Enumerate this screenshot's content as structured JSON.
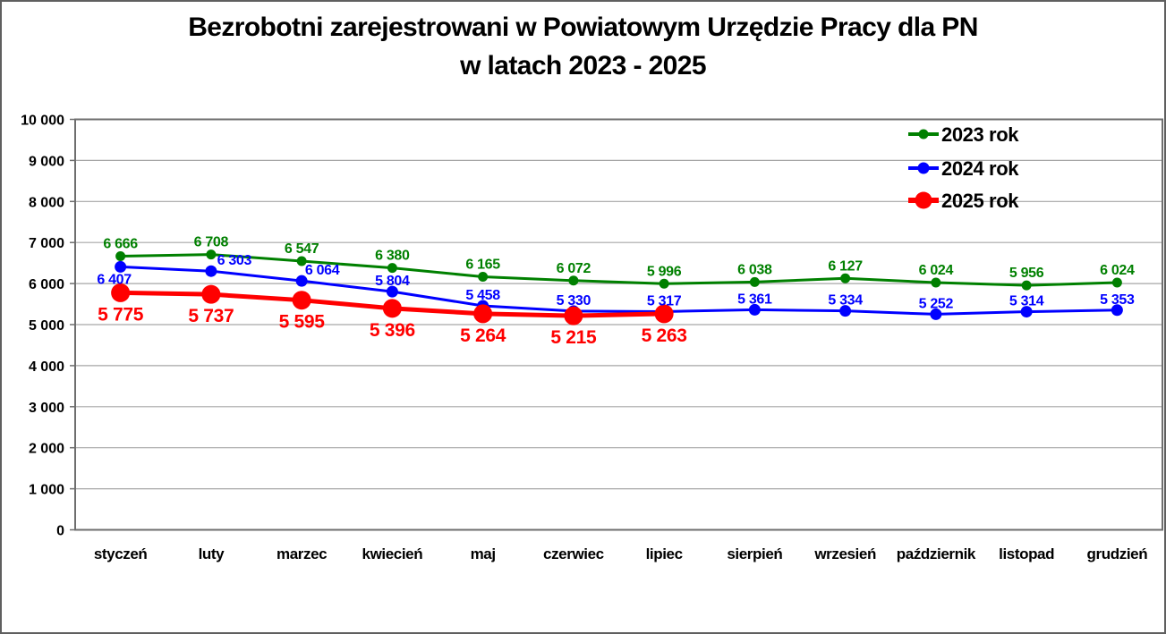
{
  "header": {
    "title_line1": "Bezrobotni zarejestrowani w Powiatowym Urzędzie Pracy dla PN",
    "title_line2": "w latach 2023 - 2025"
  },
  "chart_data": {
    "type": "line",
    "title": "Bezrobotni zarejestrowani w Powiatowym Urzędzie Pracy dla PN w latach 2023 - 2025",
    "categories": [
      "styczeń",
      "luty",
      "marzec",
      "kwiecień",
      "maj",
      "czerwiec",
      "lipiec",
      "sierpień",
      "wrzesień",
      "październik",
      "listopad",
      "grudzień"
    ],
    "series": [
      {
        "name": "2023 rok",
        "color": "#008000",
        "values": [
          6666,
          6708,
          6547,
          6380,
          6165,
          6072,
          5996,
          6038,
          6127,
          6024,
          5956,
          6024
        ]
      },
      {
        "name": "2024 rok",
        "color": "#0000FF",
        "values": [
          6407,
          6303,
          6064,
          5804,
          5458,
          5330,
          5317,
          5361,
          5334,
          5252,
          5314,
          5353
        ]
      },
      {
        "name": "2025 rok",
        "color": "#FF0000",
        "values": [
          5775,
          5737,
          5595,
          5396,
          5264,
          5215,
          5263,
          null,
          null,
          null,
          null,
          null
        ]
      }
    ],
    "ylim": [
      0,
      10000
    ],
    "ytick_step": 1000,
    "y_tick_labels": [
      "0",
      "1 000",
      "2 000",
      "3 000",
      "4 000",
      "5 000",
      "6 000",
      "7 000",
      "8 000",
      "9 000",
      "10 000"
    ],
    "grid": "horizontal",
    "data_labels": true,
    "number_format": "space-thousands",
    "legend_position": "top-right-inside",
    "legend_entries": [
      "2023 rok",
      "2024 rok",
      "2025 rok"
    ],
    "colors": {
      "grid": "#A6A6A6",
      "axis": "#6E6E6E",
      "text": "#000000",
      "background": "#FFFFFF"
    }
  }
}
